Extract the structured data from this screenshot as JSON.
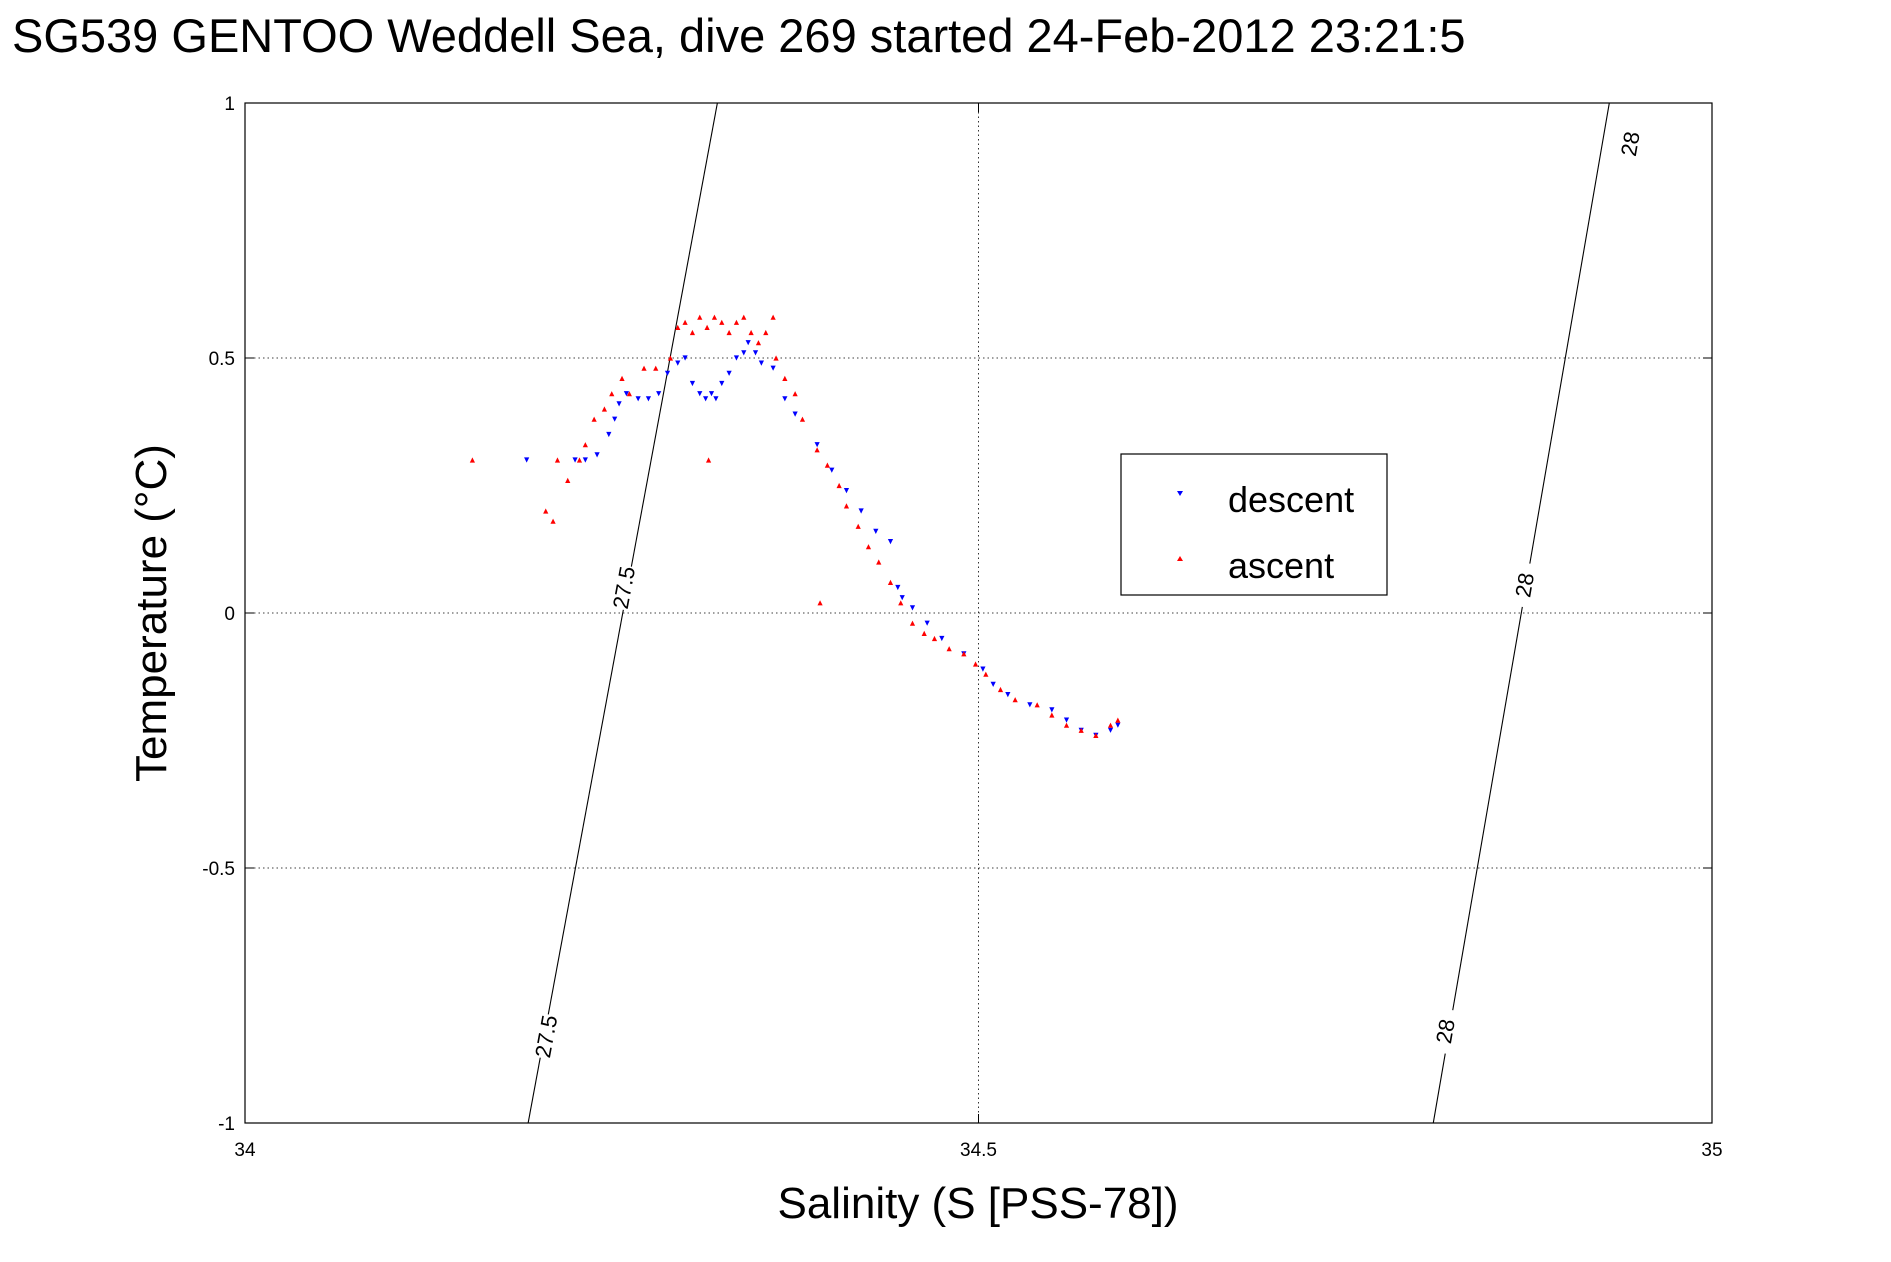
{
  "chart_data": {
    "type": "scatter",
    "title": "SG539 GENTOO Weddell Sea, dive 269 started 24-Feb-2012 23:21:5",
    "xlabel": "Salinity (S [PSS-78])",
    "ylabel": "Temperature (°C)",
    "xlim": [
      34,
      35
    ],
    "ylim": [
      -1,
      1
    ],
    "xticks": [
      34,
      34.5,
      35
    ],
    "xtick_labels": [
      "34",
      "34.5",
      "35"
    ],
    "yticks": [
      -1,
      -0.5,
      0,
      0.5,
      1
    ],
    "ytick_labels": [
      "-1",
      "-0.5",
      "0",
      "0.5",
      "1"
    ],
    "grid": true,
    "legend_position": "center-right",
    "contours": [
      {
        "level": "27.5",
        "line": [
          [
            34.193,
            -1
          ],
          [
            34.322,
            1
          ]
        ],
        "labels": [
          {
            "text": "27.5",
            "x": 34.205,
            "y": -0.83
          },
          {
            "text": "27.5",
            "x": 34.258,
            "y": 0.05
          }
        ]
      },
      {
        "level": "28",
        "line": [
          [
            34.81,
            -1
          ],
          [
            34.93,
            1
          ]
        ],
        "labels": [
          {
            "text": "28",
            "x": 34.818,
            "y": -0.82
          },
          {
            "text": "28",
            "x": 34.872,
            "y": 0.055
          },
          {
            "text": "28",
            "x": 34.944,
            "y": 0.92
          }
        ]
      }
    ],
    "series": [
      {
        "name": "descent",
        "color": "#0000ff",
        "marker": "triangle-down",
        "points": [
          [
            34.192,
            0.3
          ],
          [
            34.225,
            0.3
          ],
          [
            34.232,
            0.3
          ],
          [
            34.24,
            0.31
          ],
          [
            34.248,
            0.35
          ],
          [
            34.252,
            0.38
          ],
          [
            34.255,
            0.41
          ],
          [
            34.26,
            0.43
          ],
          [
            34.268,
            0.42
          ],
          [
            34.275,
            0.42
          ],
          [
            34.282,
            0.43
          ],
          [
            34.288,
            0.47
          ],
          [
            34.295,
            0.49
          ],
          [
            34.3,
            0.5
          ],
          [
            34.305,
            0.45
          ],
          [
            34.31,
            0.43
          ],
          [
            34.314,
            0.42
          ],
          [
            34.318,
            0.43
          ],
          [
            34.321,
            0.42
          ],
          [
            34.325,
            0.45
          ],
          [
            34.33,
            0.47
          ],
          [
            34.335,
            0.5
          ],
          [
            34.34,
            0.51
          ],
          [
            34.343,
            0.53
          ],
          [
            34.348,
            0.51
          ],
          [
            34.352,
            0.49
          ],
          [
            34.36,
            0.48
          ],
          [
            34.368,
            0.42
          ],
          [
            34.375,
            0.39
          ],
          [
            34.39,
            0.33
          ],
          [
            34.4,
            0.28
          ],
          [
            34.41,
            0.24
          ],
          [
            34.42,
            0.2
          ],
          [
            34.43,
            0.16
          ],
          [
            34.44,
            0.14
          ],
          [
            34.445,
            0.05
          ],
          [
            34.448,
            0.03
          ],
          [
            34.455,
            0.01
          ],
          [
            34.465,
            -0.02
          ],
          [
            34.475,
            -0.05
          ],
          [
            34.49,
            -0.08
          ],
          [
            34.503,
            -0.11
          ],
          [
            34.51,
            -0.14
          ],
          [
            34.52,
            -0.16
          ],
          [
            34.535,
            -0.18
          ],
          [
            34.55,
            -0.19
          ],
          [
            34.56,
            -0.21
          ],
          [
            34.57,
            -0.23
          ],
          [
            34.58,
            -0.24
          ],
          [
            34.59,
            -0.23
          ],
          [
            34.595,
            -0.22
          ]
        ]
      },
      {
        "name": "ascent",
        "color": "#ff0000",
        "marker": "triangle-up",
        "points": [
          [
            34.155,
            0.3
          ],
          [
            34.205,
            0.2
          ],
          [
            34.21,
            0.18
          ],
          [
            34.213,
            0.3
          ],
          [
            34.22,
            0.26
          ],
          [
            34.228,
            0.3
          ],
          [
            34.232,
            0.33
          ],
          [
            34.238,
            0.38
          ],
          [
            34.245,
            0.4
          ],
          [
            34.25,
            0.43
          ],
          [
            34.257,
            0.46
          ],
          [
            34.262,
            0.43
          ],
          [
            34.272,
            0.48
          ],
          [
            34.28,
            0.48
          ],
          [
            34.29,
            0.5
          ],
          [
            34.295,
            0.56
          ],
          [
            34.3,
            0.57
          ],
          [
            34.305,
            0.55
          ],
          [
            34.31,
            0.58
          ],
          [
            34.315,
            0.56
          ],
          [
            34.32,
            0.58
          ],
          [
            34.325,
            0.57
          ],
          [
            34.33,
            0.55
          ],
          [
            34.335,
            0.57
          ],
          [
            34.34,
            0.58
          ],
          [
            34.345,
            0.55
          ],
          [
            34.35,
            0.53
          ],
          [
            34.355,
            0.55
          ],
          [
            34.36,
            0.58
          ],
          [
            34.362,
            0.5
          ],
          [
            34.368,
            0.46
          ],
          [
            34.375,
            0.43
          ],
          [
            34.38,
            0.38
          ],
          [
            34.39,
            0.32
          ],
          [
            34.397,
            0.29
          ],
          [
            34.405,
            0.25
          ],
          [
            34.41,
            0.21
          ],
          [
            34.418,
            0.17
          ],
          [
            34.425,
            0.13
          ],
          [
            34.432,
            0.1
          ],
          [
            34.44,
            0.06
          ],
          [
            34.447,
            0.02
          ],
          [
            34.455,
            -0.02
          ],
          [
            34.463,
            -0.04
          ],
          [
            34.47,
            -0.05
          ],
          [
            34.48,
            -0.07
          ],
          [
            34.49,
            -0.08
          ],
          [
            34.498,
            -0.1
          ],
          [
            34.505,
            -0.12
          ],
          [
            34.515,
            -0.15
          ],
          [
            34.525,
            -0.17
          ],
          [
            34.54,
            -0.18
          ],
          [
            34.55,
            -0.2
          ],
          [
            34.56,
            -0.22
          ],
          [
            34.57,
            -0.23
          ],
          [
            34.58,
            -0.24
          ],
          [
            34.59,
            -0.22
          ],
          [
            34.595,
            -0.21
          ],
          [
            34.316,
            0.3
          ],
          [
            34.392,
            0.02
          ]
        ]
      }
    ]
  }
}
